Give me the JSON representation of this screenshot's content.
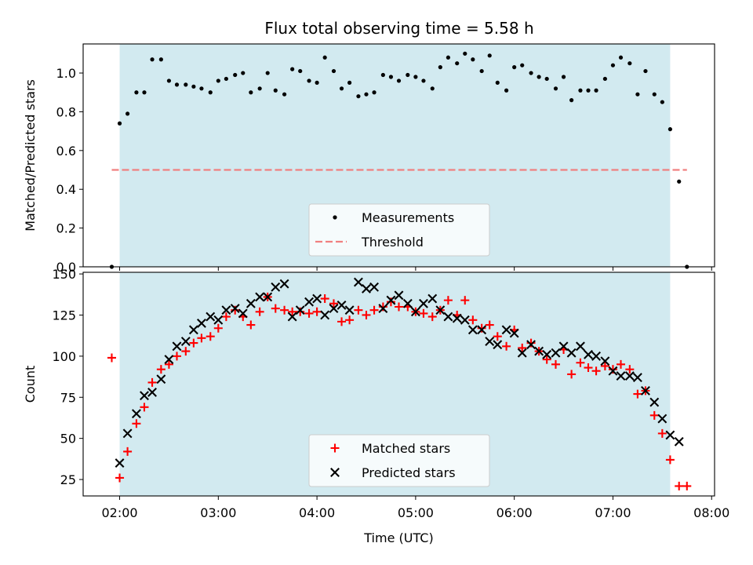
{
  "figure": {
    "title": "Flux total observing time = 5.58 h"
  },
  "colors": {
    "observing_window": "#d2eaf0",
    "measurements": "#000000",
    "threshold": "#f08080",
    "matched": "#ff0000",
    "predicted": "#000000"
  },
  "chart_data": [
    {
      "type": "scatter",
      "ylabel": "Matched/Predicted stars",
      "xlabel": "",
      "x_ticks": [
        "02:00",
        "03:00",
        "04:00",
        "05:00",
        "06:00",
        "07:00",
        "08:00"
      ],
      "x_tick_values": [
        2,
        3,
        4,
        5,
        6,
        7,
        8
      ],
      "x_tick_labels_visible": false,
      "xlim": [
        1.63,
        8.03
      ],
      "ylim": [
        0.0,
        1.15
      ],
      "y_ticks": [
        "0.0",
        "0.2",
        "0.4",
        "0.6",
        "0.8",
        "1.0"
      ],
      "y_tick_values": [
        0.0,
        0.2,
        0.4,
        0.6,
        0.8,
        1.0
      ],
      "observing_window": {
        "start": 2.0,
        "end": 7.58
      },
      "legend": {
        "placement": "lower-center",
        "entries": [
          "Measurements",
          "Threshold"
        ]
      },
      "threshold": {
        "name": "Threshold",
        "value": 0.5,
        "x_range": [
          1.92,
          7.75
        ]
      },
      "series": [
        {
          "name": "Measurements",
          "marker": "dot",
          "points": [
            [
              1.92,
              0.0
            ],
            [
              2.0,
              0.74
            ],
            [
              2.08,
              0.79
            ],
            [
              2.17,
              0.9
            ],
            [
              2.25,
              0.9
            ],
            [
              2.33,
              1.07
            ],
            [
              2.42,
              1.07
            ],
            [
              2.5,
              0.96
            ],
            [
              2.58,
              0.94
            ],
            [
              2.67,
              0.94
            ],
            [
              2.75,
              0.93
            ],
            [
              2.83,
              0.92
            ],
            [
              2.92,
              0.9
            ],
            [
              3.0,
              0.96
            ],
            [
              3.08,
              0.97
            ],
            [
              3.17,
              0.99
            ],
            [
              3.25,
              1.0
            ],
            [
              3.33,
              0.9
            ],
            [
              3.42,
              0.92
            ],
            [
              3.5,
              1.0
            ],
            [
              3.58,
              0.91
            ],
            [
              3.67,
              0.89
            ],
            [
              3.75,
              1.02
            ],
            [
              3.83,
              1.01
            ],
            [
              3.92,
              0.96
            ],
            [
              4.0,
              0.95
            ],
            [
              4.08,
              1.08
            ],
            [
              4.17,
              1.01
            ],
            [
              4.25,
              0.92
            ],
            [
              4.33,
              0.95
            ],
            [
              4.42,
              0.88
            ],
            [
              4.5,
              0.89
            ],
            [
              4.58,
              0.9
            ],
            [
              4.67,
              0.99
            ],
            [
              4.75,
              0.98
            ],
            [
              4.83,
              0.96
            ],
            [
              4.92,
              0.99
            ],
            [
              5.0,
              0.98
            ],
            [
              5.08,
              0.96
            ],
            [
              5.17,
              0.92
            ],
            [
              5.25,
              1.03
            ],
            [
              5.33,
              1.08
            ],
            [
              5.42,
              1.05
            ],
            [
              5.5,
              1.1
            ],
            [
              5.58,
              1.07
            ],
            [
              5.67,
              1.01
            ],
            [
              5.75,
              1.09
            ],
            [
              5.83,
              0.95
            ],
            [
              5.92,
              0.91
            ],
            [
              6.0,
              1.03
            ],
            [
              6.08,
              1.04
            ],
            [
              6.17,
              1.0
            ],
            [
              6.25,
              0.98
            ],
            [
              6.33,
              0.97
            ],
            [
              6.42,
              0.92
            ],
            [
              6.5,
              0.98
            ],
            [
              6.58,
              0.86
            ],
            [
              6.67,
              0.91
            ],
            [
              6.75,
              0.91
            ],
            [
              6.83,
              0.91
            ],
            [
              6.92,
              0.97
            ],
            [
              7.0,
              1.04
            ],
            [
              7.08,
              1.08
            ],
            [
              7.17,
              1.05
            ],
            [
              7.25,
              0.89
            ],
            [
              7.33,
              1.01
            ],
            [
              7.42,
              0.89
            ],
            [
              7.5,
              0.85
            ],
            [
              7.58,
              0.71
            ],
            [
              7.67,
              0.44
            ],
            [
              7.75,
              0.0
            ]
          ]
        }
      ]
    },
    {
      "type": "scatter",
      "ylabel": "Count",
      "xlabel": "Time (UTC)",
      "x_ticks": [
        "02:00",
        "03:00",
        "04:00",
        "05:00",
        "06:00",
        "07:00",
        "08:00"
      ],
      "x_tick_values": [
        2,
        3,
        4,
        5,
        6,
        7,
        8
      ],
      "x_tick_labels_visible": true,
      "xlim": [
        1.63,
        8.03
      ],
      "ylim": [
        15,
        151
      ],
      "y_ticks": [
        "25",
        "50",
        "75",
        "100",
        "125",
        "150"
      ],
      "y_tick_values": [
        25,
        50,
        75,
        100,
        125,
        150
      ],
      "observing_window": {
        "start": 2.0,
        "end": 7.58
      },
      "legend": {
        "placement": "lower-center",
        "entries": [
          "Matched stars",
          "Predicted stars"
        ]
      },
      "series": [
        {
          "name": "Matched stars",
          "marker": "plus",
          "points": [
            [
              1.92,
              99
            ],
            [
              2.0,
              26
            ],
            [
              2.08,
              42
            ],
            [
              2.17,
              59
            ],
            [
              2.25,
              69
            ],
            [
              2.33,
              84
            ],
            [
              2.42,
              92
            ],
            [
              2.5,
              95
            ],
            [
              2.58,
              100
            ],
            [
              2.67,
              103
            ],
            [
              2.75,
              108
            ],
            [
              2.83,
              111
            ],
            [
              2.92,
              112
            ],
            [
              3.0,
              117
            ],
            [
              3.08,
              124
            ],
            [
              3.17,
              128
            ],
            [
              3.25,
              124
            ],
            [
              3.33,
              119
            ],
            [
              3.42,
              127
            ],
            [
              3.5,
              136
            ],
            [
              3.58,
              129
            ],
            [
              3.67,
              128
            ],
            [
              3.75,
              127
            ],
            [
              3.83,
              127
            ],
            [
              3.92,
              126
            ],
            [
              4.0,
              127
            ],
            [
              4.08,
              135
            ],
            [
              4.17,
              132
            ],
            [
              4.25,
              121
            ],
            [
              4.33,
              122
            ],
            [
              4.42,
              128
            ],
            [
              4.5,
              125
            ],
            [
              4.58,
              128
            ],
            [
              4.67,
              130
            ],
            [
              4.75,
              133
            ],
            [
              4.83,
              130
            ],
            [
              4.92,
              130
            ],
            [
              5.0,
              127
            ],
            [
              5.08,
              126
            ],
            [
              5.17,
              124
            ],
            [
              5.25,
              128
            ],
            [
              5.33,
              134
            ],
            [
              5.42,
              125
            ],
            [
              5.5,
              134
            ],
            [
              5.58,
              122
            ],
            [
              5.67,
              117
            ],
            [
              5.75,
              119
            ],
            [
              5.83,
              112
            ],
            [
              5.92,
              106
            ],
            [
              6.0,
              116
            ],
            [
              6.08,
              105
            ],
            [
              6.17,
              108
            ],
            [
              6.25,
              103
            ],
            [
              6.33,
              98
            ],
            [
              6.42,
              95
            ],
            [
              6.5,
              104
            ],
            [
              6.58,
              89
            ],
            [
              6.67,
              96
            ],
            [
              6.75,
              93
            ],
            [
              6.83,
              91
            ],
            [
              6.92,
              94
            ],
            [
              7.0,
              92
            ],
            [
              7.08,
              95
            ],
            [
              7.17,
              92
            ],
            [
              7.25,
              77
            ],
            [
              7.33,
              79
            ],
            [
              7.42,
              64
            ],
            [
              7.5,
              53
            ],
            [
              7.58,
              37
            ],
            [
              7.67,
              21
            ],
            [
              7.75,
              21
            ]
          ]
        },
        {
          "name": "Predicted stars",
          "marker": "x",
          "points": [
            [
              2.0,
              35
            ],
            [
              2.08,
              53
            ],
            [
              2.17,
              65
            ],
            [
              2.25,
              76
            ],
            [
              2.33,
              78
            ],
            [
              2.42,
              86
            ],
            [
              2.5,
              98
            ],
            [
              2.58,
              106
            ],
            [
              2.67,
              109
            ],
            [
              2.75,
              116
            ],
            [
              2.83,
              120
            ],
            [
              2.92,
              124
            ],
            [
              3.0,
              122
            ],
            [
              3.08,
              128
            ],
            [
              3.17,
              129
            ],
            [
              3.25,
              126
            ],
            [
              3.33,
              132
            ],
            [
              3.42,
              136
            ],
            [
              3.5,
              136
            ],
            [
              3.58,
              142
            ],
            [
              3.67,
              144
            ],
            [
              3.75,
              124
            ],
            [
              3.83,
              128
            ],
            [
              3.92,
              133
            ],
            [
              4.0,
              135
            ],
            [
              4.08,
              125
            ],
            [
              4.17,
              129
            ],
            [
              4.25,
              131
            ],
            [
              4.33,
              128
            ],
            [
              4.42,
              145
            ],
            [
              4.5,
              141
            ],
            [
              4.58,
              142
            ],
            [
              4.67,
              129
            ],
            [
              4.75,
              134
            ],
            [
              4.83,
              137
            ],
            [
              4.92,
              132
            ],
            [
              5.0,
              127
            ],
            [
              5.08,
              132
            ],
            [
              5.17,
              135
            ],
            [
              5.25,
              128
            ],
            [
              5.33,
              124
            ],
            [
              5.42,
              123
            ],
            [
              5.5,
              122
            ],
            [
              5.58,
              116
            ],
            [
              5.67,
              116
            ],
            [
              5.75,
              109
            ],
            [
              5.83,
              107
            ],
            [
              5.92,
              116
            ],
            [
              6.0,
              114
            ],
            [
              6.08,
              102
            ],
            [
              6.17,
              107
            ],
            [
              6.25,
              103
            ],
            [
              6.33,
              101
            ],
            [
              6.42,
              102
            ],
            [
              6.5,
              106
            ],
            [
              6.58,
              102
            ],
            [
              6.67,
              106
            ],
            [
              6.75,
              101
            ],
            [
              6.83,
              100
            ],
            [
              6.92,
              97
            ],
            [
              7.0,
              91
            ],
            [
              7.08,
              88
            ],
            [
              7.17,
              88
            ],
            [
              7.25,
              87
            ],
            [
              7.33,
              79
            ],
            [
              7.42,
              72
            ],
            [
              7.5,
              62
            ],
            [
              7.58,
              52
            ],
            [
              7.67,
              48
            ]
          ]
        }
      ]
    }
  ]
}
